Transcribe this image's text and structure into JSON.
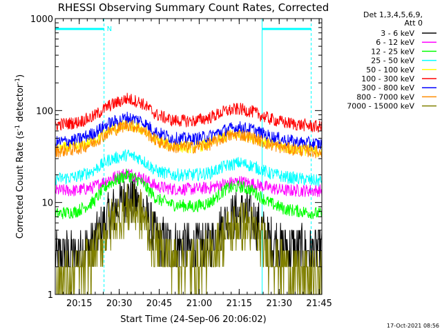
{
  "chart_data": {
    "type": "line",
    "title": "RHESSI Observing Summary Count Rates, Corrected",
    "xlabel": "Start Time (24-Sep-06 20:06:02)",
    "ylabel_main": "Corrected Count Rate (s",
    "ylabel_sup1": "-1",
    "ylabel_mid": " detector",
    "ylabel_sup2": "-1",
    "ylabel_end": ")",
    "y_scale": "log",
    "ylim": [
      1,
      1000
    ],
    "xlim_minutes": [
      0,
      100
    ],
    "x_ticks": [
      {
        "minute": 9,
        "label": "20:15"
      },
      {
        "minute": 24,
        "label": "20:30"
      },
      {
        "minute": 39,
        "label": "20:45"
      },
      {
        "minute": 54,
        "label": "21:00"
      },
      {
        "minute": 69,
        "label": "21:15"
      },
      {
        "minute": 84,
        "label": "21:30"
      },
      {
        "minute": 99,
        "label": "21:45"
      }
    ],
    "y_ticks": [
      {
        "value": 1,
        "label": "1"
      },
      {
        "value": 10,
        "label": "10"
      },
      {
        "value": 100,
        "label": "100"
      },
      {
        "value": 1000,
        "label": "1000"
      }
    ],
    "legend_header": [
      "Det 1,3,4,5,6,9,",
      "Att 0"
    ],
    "legend_position": "top-right",
    "series": [
      {
        "name": "3 - 6 keV",
        "color": "#000000",
        "points": [
          [
            0,
            2.6
          ],
          [
            8,
            2.7
          ],
          [
            14,
            3.5
          ],
          [
            20,
            7
          ],
          [
            27,
            11.5
          ],
          [
            32,
            9.5
          ],
          [
            38,
            4
          ],
          [
            44,
            3.4
          ],
          [
            52,
            3.3
          ],
          [
            58,
            3.5
          ],
          [
            64,
            6.5
          ],
          [
            69,
            7.6
          ],
          [
            74,
            6.8
          ],
          [
            80,
            4
          ],
          [
            86,
            3.2
          ],
          [
            92,
            3
          ],
          [
            100,
            2.9
          ]
        ]
      },
      {
        "name": "6 - 12 keV",
        "color": "#ff00ff",
        "points": [
          [
            0,
            13.5
          ],
          [
            8,
            13.5
          ],
          [
            14,
            14.5
          ],
          [
            20,
            18
          ],
          [
            27,
            21
          ],
          [
            32,
            19
          ],
          [
            38,
            15
          ],
          [
            44,
            14
          ],
          [
            52,
            14
          ],
          [
            58,
            14.5
          ],
          [
            64,
            16
          ],
          [
            69,
            17
          ],
          [
            74,
            16
          ],
          [
            80,
            14.5
          ],
          [
            86,
            13.5
          ],
          [
            92,
            13.5
          ],
          [
            100,
            13.5
          ]
        ]
      },
      {
        "name": "12 - 25 keV",
        "color": "#00ff00",
        "points": [
          [
            0,
            7.5
          ],
          [
            8,
            8
          ],
          [
            14,
            10
          ],
          [
            20,
            16
          ],
          [
            27,
            20
          ],
          [
            32,
            17
          ],
          [
            38,
            11
          ],
          [
            44,
            9.5
          ],
          [
            52,
            9
          ],
          [
            58,
            10
          ],
          [
            64,
            14
          ],
          [
            69,
            15
          ],
          [
            74,
            13.5
          ],
          [
            80,
            10
          ],
          [
            86,
            8.5
          ],
          [
            92,
            8
          ],
          [
            100,
            7.5
          ]
        ]
      },
      {
        "name": "25 - 50 keV",
        "color": "#00ffff",
        "points": [
          [
            0,
            18
          ],
          [
            8,
            19
          ],
          [
            14,
            22
          ],
          [
            20,
            29
          ],
          [
            27,
            33
          ],
          [
            32,
            30
          ],
          [
            38,
            22
          ],
          [
            44,
            20
          ],
          [
            52,
            20
          ],
          [
            58,
            21
          ],
          [
            64,
            25
          ],
          [
            69,
            27
          ],
          [
            74,
            25
          ],
          [
            80,
            21
          ],
          [
            86,
            19
          ],
          [
            92,
            18
          ],
          [
            100,
            17
          ]
        ]
      },
      {
        "name": "50 - 100 keV",
        "color": "#ffff00",
        "points": [
          [
            0,
            38
          ],
          [
            8,
            40
          ],
          [
            14,
            46
          ],
          [
            20,
            60
          ],
          [
            27,
            70
          ],
          [
            32,
            64
          ],
          [
            38,
            47
          ],
          [
            44,
            41
          ],
          [
            52,
            40
          ],
          [
            58,
            44
          ],
          [
            64,
            53
          ],
          [
            69,
            56
          ],
          [
            74,
            52
          ],
          [
            80,
            44
          ],
          [
            86,
            40
          ],
          [
            92,
            38
          ],
          [
            100,
            36
          ]
        ]
      },
      {
        "name": "100 - 300 keV",
        "color": "#ff0000",
        "points": [
          [
            0,
            70
          ],
          [
            8,
            74
          ],
          [
            14,
            85
          ],
          [
            20,
            112
          ],
          [
            27,
            135
          ],
          [
            32,
            123
          ],
          [
            38,
            90
          ],
          [
            44,
            78
          ],
          [
            52,
            77
          ],
          [
            58,
            84
          ],
          [
            64,
            99
          ],
          [
            69,
            104
          ],
          [
            74,
            97
          ],
          [
            80,
            82
          ],
          [
            86,
            74
          ],
          [
            92,
            70
          ],
          [
            100,
            66
          ]
        ]
      },
      {
        "name": "300 - 800 keV",
        "color": "#0000ff",
        "points": [
          [
            0,
            45
          ],
          [
            8,
            48
          ],
          [
            14,
            56
          ],
          [
            20,
            72
          ],
          [
            27,
            84
          ],
          [
            32,
            78
          ],
          [
            38,
            58
          ],
          [
            44,
            50
          ],
          [
            52,
            49
          ],
          [
            58,
            53
          ],
          [
            64,
            62
          ],
          [
            69,
            66
          ],
          [
            74,
            62
          ],
          [
            80,
            53
          ],
          [
            86,
            48
          ],
          [
            92,
            45
          ],
          [
            100,
            43
          ]
        ]
      },
      {
        "name": "800 - 7000 keV",
        "color": "#ff8c00",
        "points": [
          [
            0,
            36
          ],
          [
            8,
            38
          ],
          [
            14,
            44
          ],
          [
            20,
            58
          ],
          [
            27,
            70
          ],
          [
            32,
            64
          ],
          [
            38,
            47
          ],
          [
            44,
            40
          ],
          [
            52,
            40
          ],
          [
            58,
            43
          ],
          [
            64,
            52
          ],
          [
            69,
            55
          ],
          [
            74,
            51
          ],
          [
            80,
            43
          ],
          [
            86,
            39
          ],
          [
            92,
            37
          ],
          [
            100,
            35
          ]
        ]
      },
      {
        "name": "7000 - 15000 keV",
        "color": "#808000",
        "points": [
          [
            0,
            1.4
          ],
          [
            8,
            1.6
          ],
          [
            14,
            2.6
          ],
          [
            20,
            5.5
          ],
          [
            27,
            8.8
          ],
          [
            32,
            7.8
          ],
          [
            38,
            3.2
          ],
          [
            44,
            2.4
          ],
          [
            52,
            2.2
          ],
          [
            58,
            2.6
          ],
          [
            64,
            4.6
          ],
          [
            69,
            5.8
          ],
          [
            74,
            5.2
          ],
          [
            80,
            2.8
          ],
          [
            86,
            2
          ],
          [
            92,
            1.7
          ],
          [
            100,
            1.5
          ]
        ]
      }
    ],
    "markers": {
      "color": "#00ffff",
      "n_label": "N",
      "vertical_lines_minutes": [
        0,
        18.3,
        77.6,
        96
      ],
      "top_bars": [
        [
          0,
          18.3
        ],
        [
          77.6,
          96
        ]
      ]
    }
  },
  "footer": {
    "timestamp": "17-Oct-2021 08:56"
  }
}
